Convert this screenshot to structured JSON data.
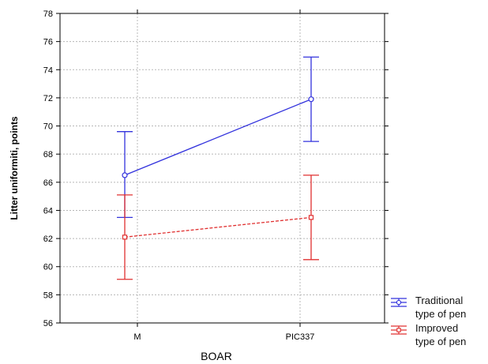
{
  "chart_data": {
    "type": "line",
    "xlabel": "BOAR",
    "ylabel": "Litter uniformiti, points",
    "categories": [
      "M",
      "PIC337"
    ],
    "yticks": [
      "56",
      "58",
      "60",
      "62",
      "64",
      "66",
      "68",
      "70",
      "72",
      "74",
      "76",
      "78"
    ],
    "ylim": [
      56,
      78
    ],
    "grid": true,
    "legend_position": "bottom-right outside",
    "series": [
      {
        "name": "Traditional type of pen",
        "legend_lines": [
          "Traditional",
          "type of pen"
        ],
        "color": "#3333dd",
        "marker": "circle",
        "line_style": "solid",
        "values": [
          66.5,
          71.9
        ],
        "error_low": [
          63.5,
          68.9
        ],
        "error_high": [
          69.6,
          74.9
        ]
      },
      {
        "name": "Improved type of pen",
        "legend_lines": [
          "Improved",
          "type of pen"
        ],
        "color": "#e03030",
        "marker": "square",
        "line_style": "dashed",
        "values": [
          62.1,
          63.5
        ],
        "error_low": [
          59.1,
          60.5
        ],
        "error_high": [
          65.1,
          66.5
        ]
      }
    ]
  }
}
